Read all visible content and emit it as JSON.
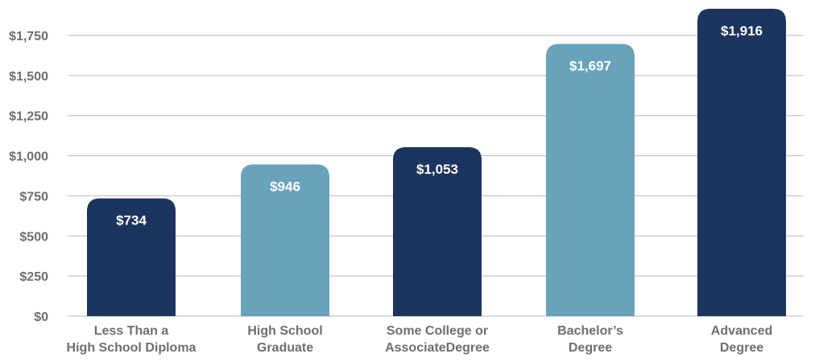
{
  "chart_data": {
    "type": "bar",
    "title": "",
    "xlabel": "",
    "ylabel": "",
    "categories": [
      [
        "Less Than a",
        "High School Diploma"
      ],
      [
        "High School",
        "Graduate"
      ],
      [
        "Some College or",
        "AssociateDegree"
      ],
      [
        "Bachelor’s",
        "Degree"
      ],
      [
        "Advanced",
        "Degree"
      ]
    ],
    "values": [
      734,
      946,
      1053,
      1697,
      1916
    ],
    "data_labels": [
      "$734",
      "$946",
      "$1,053",
      "$1,697",
      "$1,916"
    ],
    "ylim": [
      0,
      1750
    ],
    "yticks": [
      0,
      250,
      500,
      750,
      1000,
      1250,
      1500,
      1750
    ],
    "ytick_labels": [
      "$0",
      "$250",
      "$500",
      "$750",
      "$1,000",
      "$1,250",
      "$1,500",
      "$1,750"
    ],
    "grid": true,
    "legend": "none",
    "bar_colors": [
      "#1c355e",
      "#69a3bb",
      "#1c355e",
      "#69a3bb",
      "#1c355e"
    ]
  }
}
